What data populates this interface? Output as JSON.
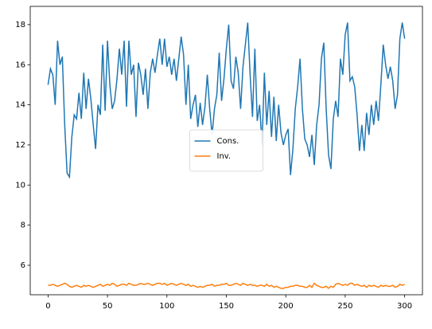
{
  "chart_data": {
    "type": "line",
    "x": [
      0,
      2,
      4,
      6,
      8,
      10,
      12,
      14,
      16,
      18,
      20,
      22,
      24,
      26,
      28,
      30,
      32,
      34,
      36,
      38,
      40,
      42,
      44,
      46,
      48,
      50,
      52,
      54,
      56,
      58,
      60,
      62,
      64,
      66,
      68,
      70,
      72,
      74,
      76,
      78,
      80,
      82,
      84,
      86,
      88,
      90,
      92,
      94,
      96,
      98,
      100,
      102,
      104,
      106,
      108,
      110,
      112,
      114,
      116,
      118,
      120,
      122,
      124,
      126,
      128,
      130,
      132,
      134,
      136,
      138,
      140,
      142,
      144,
      146,
      148,
      150,
      152,
      154,
      156,
      158,
      160,
      162,
      164,
      166,
      168,
      170,
      172,
      174,
      176,
      178,
      180,
      182,
      184,
      186,
      188,
      190,
      192,
      194,
      196,
      198,
      200,
      202,
      204,
      206,
      208,
      210,
      212,
      214,
      216,
      218,
      220,
      222,
      224,
      226,
      228,
      230,
      232,
      234,
      236,
      238,
      240,
      242,
      244,
      246,
      248,
      250,
      252,
      254,
      256,
      258,
      260,
      262,
      264,
      266,
      268,
      270,
      272,
      274,
      276,
      278,
      280,
      282,
      284,
      286,
      288,
      290,
      292,
      294,
      296,
      298,
      300
    ],
    "series": [
      {
        "name": "Cons.",
        "color": "#1f77b4",
        "values": [
          15.0,
          15.8,
          15.5,
          14.0,
          17.2,
          16.0,
          16.4,
          13.0,
          10.6,
          10.4,
          12.4,
          13.5,
          13.3,
          14.6,
          13.3,
          15.6,
          13.8,
          15.3,
          14.3,
          13.0,
          11.8,
          14.0,
          13.5,
          17.0,
          13.7,
          17.2,
          15.0,
          13.8,
          14.2,
          15.3,
          16.8,
          15.5,
          17.2,
          13.9,
          17.2,
          15.5,
          16.0,
          13.4,
          16.1,
          15.5,
          14.5,
          15.8,
          13.8,
          15.6,
          16.3,
          15.6,
          16.5,
          17.3,
          16.0,
          17.3,
          15.9,
          16.4,
          15.5,
          16.3,
          15.2,
          16.3,
          17.4,
          16.5,
          14.0,
          16.0,
          13.3,
          14.0,
          14.5,
          12.9,
          14.1,
          13.0,
          13.9,
          15.5,
          13.8,
          12.5,
          13.8,
          14.5,
          16.6,
          14.2,
          15.3,
          16.8,
          18.0,
          15.2,
          14.8,
          16.4,
          15.6,
          13.8,
          15.9,
          17.0,
          18.1,
          15.5,
          13.4,
          16.8,
          13.2,
          14.0,
          12.0,
          15.6,
          13.0,
          14.7,
          12.4,
          14.4,
          12.2,
          14.0,
          12.6,
          12.0,
          12.5,
          12.8,
          10.5,
          11.8,
          13.8,
          14.9,
          16.3,
          13.8,
          12.3,
          12.0,
          11.4,
          12.5,
          11.0,
          13.0,
          14.0,
          16.3,
          17.1,
          13.8,
          11.5,
          10.8,
          13.3,
          14.2,
          13.4,
          16.3,
          15.5,
          17.5,
          18.1,
          15.2,
          15.4,
          14.9,
          13.5,
          11.7,
          13.0,
          11.7,
          13.6,
          12.5,
          14.0,
          13.0,
          14.2,
          13.2,
          15.0,
          17.0,
          16.0,
          15.3,
          15.9,
          15.2,
          13.8,
          14.5,
          17.3,
          18.1,
          17.3
        ]
      },
      {
        "name": "Inv.",
        "color": "#ff7f0e",
        "values": [
          5.0,
          5.0,
          5.05,
          5.0,
          4.95,
          5.0,
          5.05,
          5.1,
          5.05,
          4.95,
          4.9,
          4.95,
          5.0,
          4.95,
          4.9,
          5.0,
          4.95,
          5.0,
          4.95,
          4.9,
          4.95,
          5.0,
          5.05,
          4.95,
          5.0,
          5.05,
          5.0,
          5.1,
          5.05,
          4.95,
          5.0,
          5.05,
          5.05,
          5.0,
          5.1,
          5.05,
          5.0,
          5.0,
          5.05,
          5.1,
          5.05,
          5.05,
          5.1,
          5.05,
          5.0,
          5.05,
          5.1,
          5.1,
          5.05,
          5.1,
          5.0,
          5.05,
          5.1,
          5.05,
          5.0,
          5.05,
          5.1,
          5.05,
          5.0,
          5.05,
          4.95,
          5.0,
          4.95,
          4.9,
          4.95,
          4.9,
          4.95,
          5.0,
          5.0,
          5.05,
          4.95,
          5.0,
          5.0,
          5.05,
          5.05,
          5.1,
          5.0,
          5.0,
          5.05,
          5.1,
          5.05,
          5.0,
          5.1,
          5.05,
          5.0,
          5.05,
          5.0,
          5.0,
          4.95,
          5.0,
          5.0,
          4.95,
          5.05,
          4.95,
          5.0,
          4.9,
          4.95,
          4.9,
          4.85,
          4.85,
          4.9,
          4.9,
          4.95,
          4.95,
          5.0,
          5.0,
          4.95,
          4.95,
          4.9,
          4.9,
          5.0,
          4.9,
          5.1,
          5.0,
          4.95,
          4.9,
          4.9,
          4.95,
          4.85,
          4.95,
          4.9,
          5.05,
          5.1,
          5.05,
          5.0,
          5.05,
          5.0,
          5.1,
          5.1,
          5.0,
          5.05,
          5.0,
          4.95,
          5.0,
          4.9,
          5.0,
          4.95,
          5.0,
          4.95,
          4.9,
          5.0,
          4.95,
          5.0,
          4.95,
          4.95,
          5.0,
          4.9,
          4.95,
          5.05,
          5.0,
          5.05
        ]
      }
    ],
    "xlim": [
      -15,
      315
    ],
    "ylim": [
      4.53,
      18.91
    ],
    "xticks": [
      0,
      50,
      100,
      150,
      200,
      250,
      300
    ],
    "yticks": [
      6,
      8,
      10,
      12,
      14,
      16,
      18
    ],
    "grid": false,
    "legend": "center"
  }
}
